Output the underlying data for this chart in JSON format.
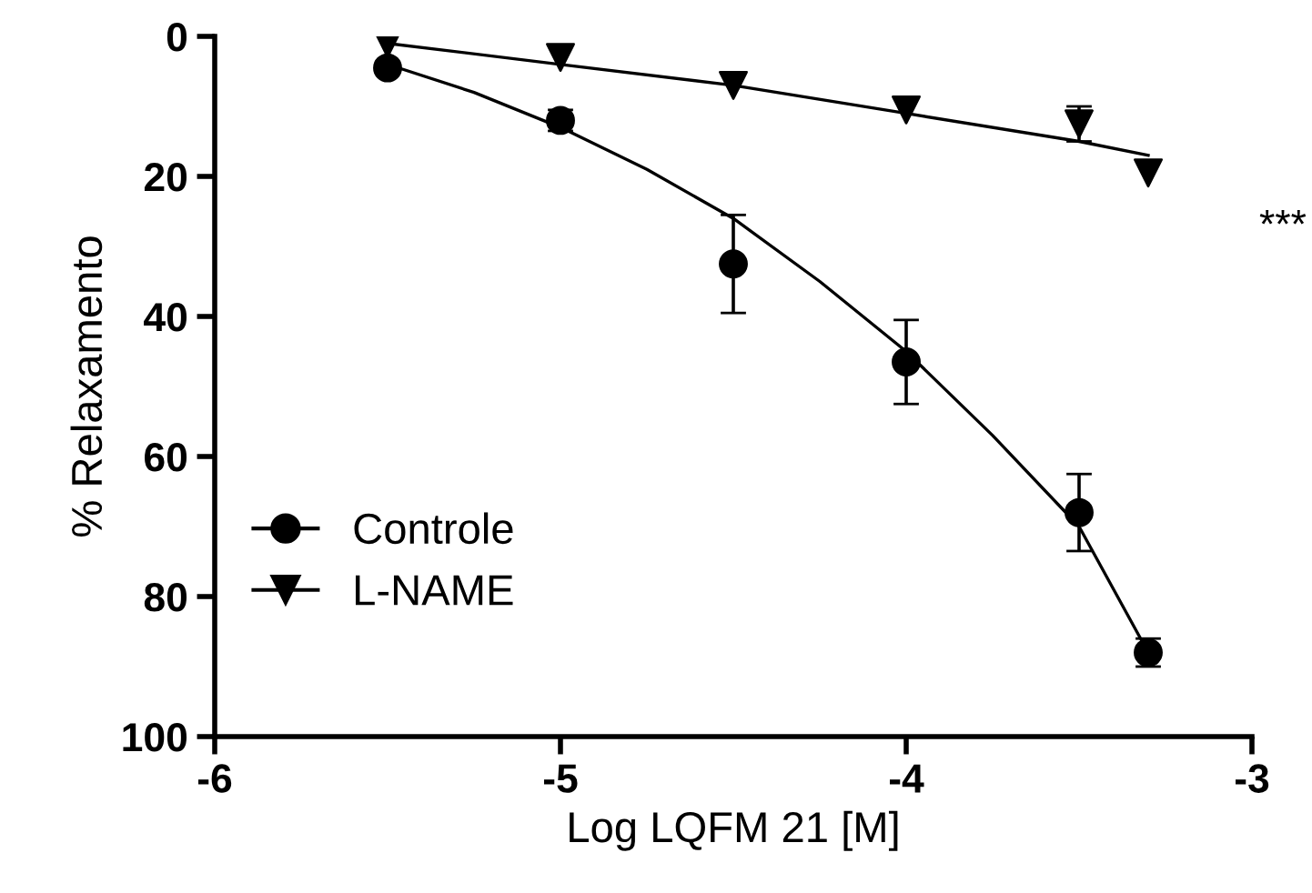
{
  "chart_data": {
    "type": "scatter",
    "xlabel": "Log LQFM 21 [M]",
    "ylabel": "% Relaxamento",
    "xlim": [
      -6,
      -3
    ],
    "xticks": [
      -6,
      -5,
      -4,
      -3
    ],
    "ylim": [
      100,
      0
    ],
    "yticks": [
      0,
      20,
      40,
      60,
      80,
      100
    ],
    "grid": false,
    "legend": "bottom left",
    "annotations": [
      "***"
    ],
    "series": [
      {
        "name": "Controle",
        "marker": "circle",
        "color": "#000000",
        "x": [
          -5.5,
          -5,
          -4.5,
          -4,
          -3.5,
          -3.3
        ],
        "values": [
          4.5,
          12,
          32.5,
          46.5,
          68,
          88
        ],
        "errors": [
          null,
          1.5,
          7,
          6,
          5.5,
          2
        ]
      },
      {
        "name": "L-NAME",
        "marker": "triangle",
        "color": "#000000",
        "x": [
          -5.5,
          -5,
          -4.5,
          -4,
          -3.5,
          -3.3
        ],
        "values": [
          1,
          3,
          7,
          10.5,
          12.5,
          19.5
        ],
        "errors": [
          null,
          null,
          null,
          null,
          2.5,
          null
        ]
      },
      {
        "type": "line",
        "marker": "none",
        "color": "#000000",
        "x": [
          -5.5,
          -5.25,
          -5,
          -4.75,
          -4.5,
          -4.25,
          -4,
          -3.75,
          -3.5,
          -3.3
        ],
        "values": [
          4,
          8,
          13,
          19,
          26,
          35,
          45,
          57,
          70,
          88
        ]
      },
      {
        "type": "line",
        "marker": "none",
        "color": "#000000",
        "x": [
          -5.5,
          -5,
          -4.5,
          -4,
          -3.5,
          -3.3
        ],
        "values": [
          1,
          4,
          7,
          11,
          15,
          17
        ]
      }
    ]
  }
}
